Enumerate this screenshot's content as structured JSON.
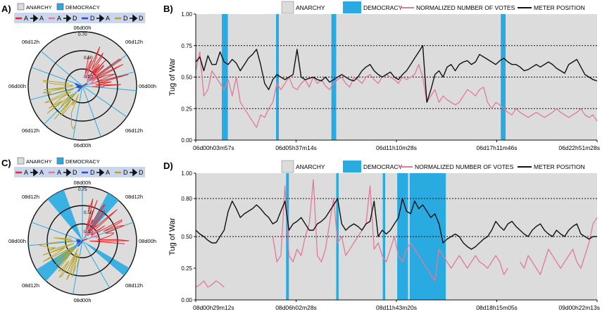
{
  "colors": {
    "anarchy": "#dcdcdc",
    "democracy": "#29abe2",
    "votes": "#e07a9a",
    "meter": "#111111",
    "aa": "#e8262b",
    "ad": "#e07a9a",
    "da": "#2a4bbf",
    "dd": "#b5a62a",
    "legend_bg": "#c9d6ee"
  },
  "legend_labels": {
    "anarchy": "ANARCHY",
    "democracy": "DEMOCRACY",
    "votes": "NORMALIZED NUMBER OF VOTES",
    "meter": "METER POSITION",
    "a": "A",
    "d": "D"
  },
  "panels": {
    "a": {
      "label": "A)"
    },
    "b": {
      "label": "B)"
    },
    "c": {
      "label": "C)"
    },
    "d": {
      "label": "D)"
    }
  },
  "chart_data": [
    {
      "id": "A",
      "type": "polar",
      "ring_labels": [
        "0.10",
        "0.50",
        "0.70"
      ],
      "time_labels": {
        "top": "06d00h",
        "right": "06d00h",
        "bottom": "06d00h",
        "left": "06d00h",
        "top_left": "06d12h",
        "top_right": "06d12h",
        "bottom_left": "06d12h",
        "bottom_right": "06d12h"
      },
      "series": [
        "A→A",
        "A→D",
        "D→A",
        "D→D"
      ]
    },
    {
      "id": "B",
      "type": "line",
      "ylabel": "Tug of War",
      "ylim": [
        0,
        1
      ],
      "y_ticks": [
        "0.00",
        "0.25",
        "0.50",
        "0.75",
        "1.00"
      ],
      "x_ticks": [
        "06d00h03m57s",
        "06d05h37m14s",
        "06d11h10m28s",
        "06d17h11m46s",
        "06d22h51m28s"
      ],
      "reference_lines": [
        0.25,
        0.5,
        0.75
      ],
      "democracy_bands": [
        [
          0.065,
          0.08
        ],
        [
          0.2,
          0.207
        ],
        [
          0.338,
          0.35
        ],
        [
          0.76,
          0.772
        ]
      ],
      "meter_position": [
        0.62,
        0.66,
        0.55,
        0.67,
        0.6,
        0.6,
        0.7,
        0.62,
        0.6,
        0.64,
        0.61,
        0.55,
        0.6,
        0.65,
        0.68,
        0.72,
        0.6,
        0.45,
        0.4,
        0.48,
        0.52,
        0.5,
        0.48,
        0.5,
        0.52,
        0.72,
        0.5,
        0.48,
        0.49,
        0.5,
        0.48,
        0.47,
        0.5,
        0.46,
        0.48,
        0.5,
        0.52,
        0.5,
        0.48,
        0.47,
        0.5,
        0.55,
        0.58,
        0.6,
        0.55,
        0.52,
        0.5,
        0.52,
        0.54,
        0.5,
        0.48,
        0.52,
        0.55,
        0.6,
        0.65,
        0.7,
        0.75,
        0.3,
        0.4,
        0.52,
        0.55,
        0.5,
        0.58,
        0.6,
        0.55,
        0.6,
        0.62,
        0.63,
        0.6,
        0.62,
        0.68,
        0.66,
        0.64,
        0.62,
        0.6,
        0.63,
        0.65,
        0.62,
        0.6,
        0.6,
        0.58,
        0.55,
        0.56,
        0.58,
        0.6,
        0.58,
        0.6,
        0.62,
        0.6,
        0.57,
        0.55,
        0.53,
        0.6,
        0.62,
        0.64,
        0.58,
        0.52,
        0.5,
        0.48,
        0.47
      ],
      "normalized_votes": [
        0.55,
        0.7,
        0.35,
        0.4,
        0.55,
        0.5,
        0.45,
        0.4,
        0.48,
        0.35,
        0.5,
        0.3,
        0.25,
        0.2,
        0.15,
        0.1,
        0.2,
        0.18,
        0.25,
        0.3,
        0.45,
        0.4,
        0.45,
        0.5,
        0.42,
        0.4,
        0.45,
        0.48,
        0.42,
        0.5,
        0.45,
        0.48,
        0.43,
        0.4,
        0.45,
        0.48,
        0.5,
        0.45,
        0.42,
        0.5,
        0.48,
        0.45,
        0.5,
        0.52,
        0.48,
        0.45,
        0.5,
        0.52,
        0.5,
        0.48,
        0.45,
        0.5,
        0.48,
        0.5,
        0.52,
        0.6,
        0.5,
        0.3,
        0.35,
        0.4,
        0.3,
        0.35,
        0.32,
        0.3,
        0.28,
        0.3,
        0.35,
        0.4,
        0.38,
        0.35,
        0.4,
        0.42,
        0.3,
        0.25,
        0.3,
        0.28,
        0.25,
        0.22,
        0.2,
        0.25,
        0.22,
        0.2,
        0.18,
        0.2,
        0.22,
        0.2,
        0.18,
        0.2,
        0.22,
        0.25,
        0.22,
        0.2,
        0.18,
        0.2,
        0.22,
        0.25,
        0.2,
        0.18,
        0.2,
        0.15
      ]
    },
    {
      "id": "C",
      "type": "polar",
      "ring_labels": [
        "0.10",
        "0.50",
        "0.75"
      ],
      "time_labels": {
        "top": "08d00h",
        "right": "08d00h",
        "bottom": "08d00h",
        "left": "08d00h",
        "top_left": "08d12h",
        "top_right": "08d12h",
        "bottom_left": "08d12h",
        "bottom_right": "08d12h"
      },
      "series": [
        "A→A",
        "A→D",
        "D→A",
        "D→D"
      ]
    },
    {
      "id": "D",
      "type": "line",
      "ylabel": "Tug of War",
      "ylim": [
        0,
        1
      ],
      "y_ticks": [
        "0.00",
        "0.25",
        "0.50",
        "0.80",
        "1.00"
      ],
      "y_tick_values": [
        0,
        0.25,
        0.5,
        0.8,
        1
      ],
      "x_ticks": [
        "08d00h29m12s",
        "08d06h02m28s",
        "08d11h43m20s",
        "08d18h15m05s",
        "09d00h22m13s"
      ],
      "reference_lines": [
        0.5,
        0.8
      ],
      "democracy_bands": [
        [
          0.225,
          0.232
        ],
        [
          0.35,
          0.356
        ],
        [
          0.466,
          0.472
        ],
        [
          0.502,
          0.529
        ],
        [
          0.533,
          0.623
        ]
      ],
      "meter_position": [
        0.55,
        0.52,
        0.5,
        0.47,
        0.45,
        0.45,
        0.5,
        0.55,
        0.7,
        0.78,
        0.72,
        0.65,
        0.68,
        0.7,
        0.72,
        0.75,
        0.72,
        0.68,
        0.65,
        0.6,
        0.62,
        0.7,
        0.78,
        0.55,
        0.6,
        0.62,
        0.65,
        0.6,
        0.55,
        0.55,
        0.6,
        0.62,
        0.65,
        0.7,
        0.75,
        0.8,
        0.6,
        0.55,
        0.58,
        0.6,
        0.58,
        0.55,
        0.6,
        0.62,
        0.78,
        0.5,
        0.55,
        0.52,
        0.55,
        0.6,
        0.65,
        0.8,
        0.7,
        0.68,
        0.78,
        0.72,
        0.75,
        0.7,
        0.65,
        0.68,
        0.6,
        0.45,
        0.48,
        0.5,
        0.52,
        0.5,
        0.45,
        0.42,
        0.4,
        0.42,
        0.45,
        0.48,
        0.5,
        0.55,
        0.62,
        0.58,
        0.55,
        0.6,
        0.62,
        0.58,
        0.55,
        0.52,
        0.5,
        0.55,
        0.58,
        0.6,
        0.55,
        0.52,
        0.5,
        0.55,
        0.52,
        0.5,
        0.55,
        0.58,
        0.6,
        0.52,
        0.5,
        0.48,
        0.5,
        0.5
      ],
      "normalized_votes": [
        0.1,
        0.12,
        0.15,
        0.1,
        0.12,
        0.15,
        0.13,
        0.1,
        null,
        null,
        null,
        null,
        null,
        null,
        null,
        null,
        null,
        null,
        null,
        0.5,
        0.3,
        0.35,
        0.9,
        0.35,
        0.3,
        0.4,
        0.35,
        0.5,
        0.6,
        0.95,
        0.35,
        0.3,
        0.4,
        0.6,
        0.8,
        0.45,
        0.5,
        0.35,
        0.4,
        0.45,
        0.5,
        0.55,
        0.6,
        0.9,
        0.4,
        0.45,
        0.35,
        0.3,
        0.4,
        0.5,
        0.35,
        0.3,
        0.4,
        0.45,
        0.4,
        0.35,
        0.3,
        0.25,
        0.2,
        0.15,
        0.4,
        0.35,
        0.3,
        0.25,
        0.3,
        0.35,
        0.3,
        0.25,
        0.3,
        0.35,
        0.3,
        0.28,
        0.25,
        0.3,
        0.35,
        0.3,
        0.2,
        0.25,
        null,
        null,
        0.3,
        0.25,
        0.35,
        0.3,
        0.25,
        0.2,
        0.3,
        0.4,
        0.35,
        0.3,
        0.25,
        0.3,
        0.35,
        0.4,
        0.3,
        0.25,
        0.35,
        0.45,
        0.6,
        0.65
      ]
    }
  ]
}
